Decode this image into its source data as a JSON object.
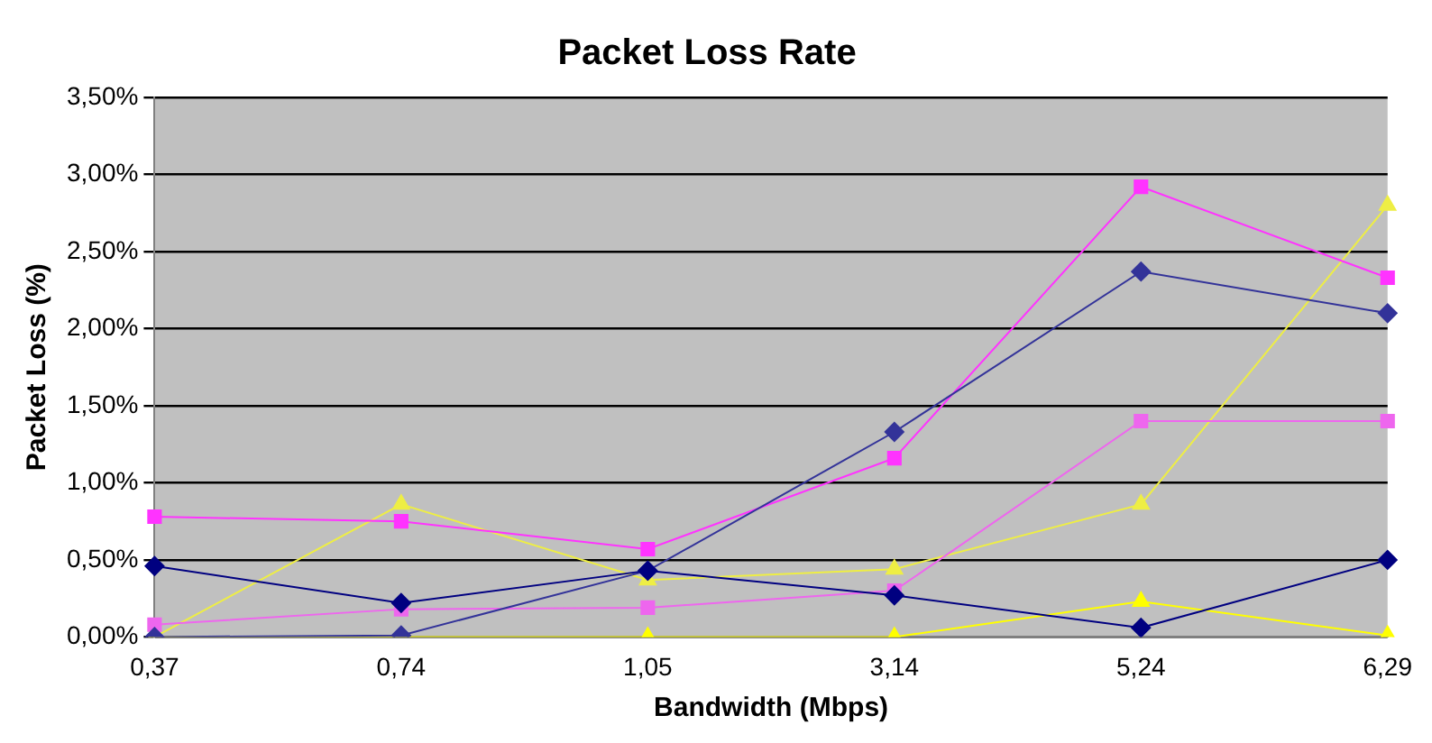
{
  "chart_data": {
    "type": "line",
    "title": "Packet Loss Rate",
    "xlabel": "Bandwidth (Mbps)",
    "ylabel": "Packet Loss (%)",
    "categories": [
      "0,37",
      "0,74",
      "1,05",
      "3,14",
      "5,24",
      "6,29"
    ],
    "series": [
      {
        "color": "#000080",
        "marker": "diamond",
        "values": [
          0.46,
          0.22,
          0.43,
          0.27,
          0.06,
          0.5
        ]
      },
      {
        "color": "#333399",
        "marker": "diamond",
        "values": [
          0,
          0.01,
          0.43,
          1.33,
          2.37,
          2.1
        ]
      },
      {
        "color": "#ff33ff",
        "marker": "square",
        "values": [
          0.78,
          0.75,
          0.57,
          1.16,
          2.92,
          2.33
        ]
      },
      {
        "color": "#ee66ee",
        "marker": "square",
        "values": [
          0.08,
          0.18,
          0.19,
          0.3,
          1.4,
          1.4
        ]
      },
      {
        "color": "#ffff00",
        "marker": "triangle",
        "values": [
          0,
          0,
          0,
          0,
          0.23,
          0.01
        ]
      },
      {
        "color": "#eeee44",
        "marker": "triangle",
        "values": [
          0,
          0.86,
          0.37,
          0.44,
          0.86,
          2.8
        ]
      }
    ],
    "ylim": [
      0,
      3.5
    ],
    "yticks": [
      {
        "value": 0,
        "label": "0,00%"
      },
      {
        "value": 0.5,
        "label": "0,50%"
      },
      {
        "value": 1,
        "label": "1,00%"
      },
      {
        "value": 1.5,
        "label": "1,50%"
      },
      {
        "value": 2,
        "label": "2,00%"
      },
      {
        "value": 2.5,
        "label": "2,50%"
      },
      {
        "value": 3,
        "label": "3,00%"
      },
      {
        "value": 3.5,
        "label": "3,50%"
      }
    ],
    "grid": "y",
    "legend": false
  }
}
